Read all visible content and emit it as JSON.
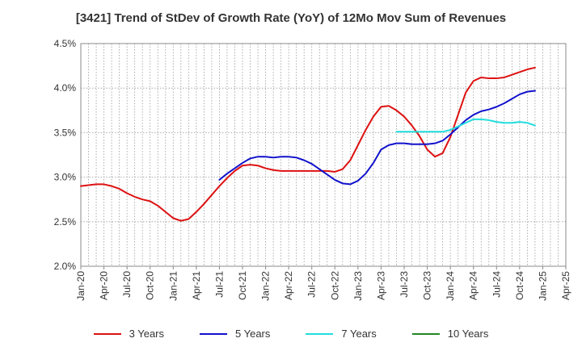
{
  "chart_data": {
    "type": "line",
    "title": "[3421]  Trend of StDev of Growth Rate (YoY) of 12Mo Mov Sum of Revenues",
    "xlabel": "",
    "ylabel": "",
    "ylim": [
      0.02,
      0.045
    ],
    "y_ticks": [
      {
        "value": 0.045,
        "label": "4.5%"
      },
      {
        "value": 0.04,
        "label": "4.0%"
      },
      {
        "value": 0.035,
        "label": "3.5%"
      },
      {
        "value": 0.03,
        "label": "3.0%"
      },
      {
        "value": 0.025,
        "label": "2.5%"
      },
      {
        "value": 0.02,
        "label": "2.0%"
      }
    ],
    "x_range": [
      0,
      63
    ],
    "x_ticks": [
      {
        "index": 0,
        "label": "Jan-20"
      },
      {
        "index": 3,
        "label": "Apr-20"
      },
      {
        "index": 6,
        "label": "Jul-20"
      },
      {
        "index": 9,
        "label": "Oct-20"
      },
      {
        "index": 12,
        "label": "Jan-21"
      },
      {
        "index": 15,
        "label": "Apr-21"
      },
      {
        "index": 18,
        "label": "Jul-21"
      },
      {
        "index": 21,
        "label": "Oct-21"
      },
      {
        "index": 24,
        "label": "Jan-22"
      },
      {
        "index": 27,
        "label": "Apr-22"
      },
      {
        "index": 30,
        "label": "Jul-22"
      },
      {
        "index": 33,
        "label": "Oct-22"
      },
      {
        "index": 36,
        "label": "Jan-23"
      },
      {
        "index": 39,
        "label": "Apr-23"
      },
      {
        "index": 42,
        "label": "Jul-23"
      },
      {
        "index": 45,
        "label": "Oct-23"
      },
      {
        "index": 48,
        "label": "Jan-24"
      },
      {
        "index": 51,
        "label": "Apr-24"
      },
      {
        "index": 54,
        "label": "Jul-24"
      },
      {
        "index": 57,
        "label": "Oct-24"
      },
      {
        "index": 60,
        "label": "Jan-25"
      },
      {
        "index": 63,
        "label": "Apr-25"
      }
    ],
    "grid": true,
    "legend_position": "bottom",
    "series": [
      {
        "name": "3 Years",
        "color": "#dd1111",
        "start_index": 0,
        "values": [
          0.029,
          0.0291,
          0.0292,
          0.0292,
          0.029,
          0.0287,
          0.0282,
          0.0278,
          0.0275,
          0.0273,
          0.0268,
          0.0261,
          0.0254,
          0.0251,
          0.0253,
          0.0261,
          0.027,
          0.028,
          0.029,
          0.0299,
          0.0307,
          0.0313,
          0.0314,
          0.0313,
          0.031,
          0.0308,
          0.0307,
          0.0307,
          0.0307,
          0.0307,
          0.0307,
          0.0307,
          0.0307,
          0.0306,
          0.0309,
          0.0319,
          0.0336,
          0.0353,
          0.0368,
          0.0379,
          0.038,
          0.0375,
          0.0368,
          0.0358,
          0.0346,
          0.0331,
          0.0323,
          0.0327,
          0.0345,
          0.037,
          0.0395,
          0.0408,
          0.0412,
          0.0411,
          0.0411,
          0.0412,
          0.0415,
          0.0418,
          0.0421,
          0.0423
        ]
      },
      {
        "name": "5 Years",
        "color": "#1111cc",
        "start_index": 18,
        "values": [
          0.0297,
          0.0304,
          0.031,
          0.0316,
          0.0321,
          0.0323,
          0.0323,
          0.0322,
          0.0323,
          0.0323,
          0.0322,
          0.0319,
          0.0315,
          0.0309,
          0.0303,
          0.0297,
          0.0293,
          0.0292,
          0.0296,
          0.0304,
          0.0316,
          0.0331,
          0.0336,
          0.0338,
          0.0338,
          0.0337,
          0.0337,
          0.0337,
          0.0338,
          0.0341,
          0.0348,
          0.0356,
          0.0364,
          0.037,
          0.0374,
          0.0376,
          0.0379,
          0.0383,
          0.0388,
          0.0393,
          0.0396,
          0.0397
        ]
      },
      {
        "name": "7 Years",
        "color": "#22dddd",
        "start_index": 41,
        "values": [
          0.0351,
          0.0351,
          0.0351,
          0.0351,
          0.0351,
          0.0351,
          0.0351,
          0.0353,
          0.0357,
          0.0361,
          0.0365,
          0.0365,
          0.0364,
          0.0362,
          0.0361,
          0.0361,
          0.0362,
          0.0361,
          0.0358
        ]
      },
      {
        "name": "10 Years",
        "color": "#228822",
        "start_index": 0,
        "values": []
      }
    ]
  }
}
